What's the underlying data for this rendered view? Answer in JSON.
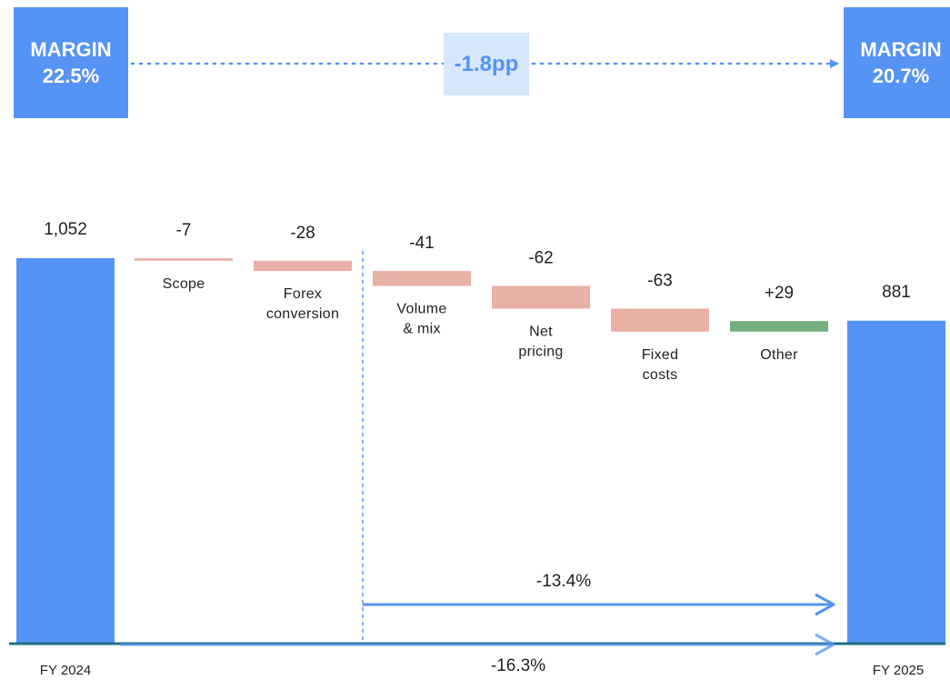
{
  "margin_left": {
    "label": "MARGIN",
    "value": "22.5%"
  },
  "margin_right": {
    "label": "MARGIN",
    "value": "20.7%"
  },
  "margin_change": "-1.8pp",
  "colors": {
    "total": "#5593f5",
    "negative": "#e8b1a6",
    "positive": "#74b07f",
    "axis": "#1f6e80",
    "arrow": "#5593f5",
    "badge_bg": "#d7e7fc"
  },
  "chart_data": {
    "type": "waterfall",
    "start": {
      "label": "FY 2024",
      "value": 1052,
      "value_label": "1,052"
    },
    "end": {
      "label": "FY 2025",
      "value": 881,
      "value_label": "881"
    },
    "steps": [
      {
        "label": [
          "Scope"
        ],
        "value": -7,
        "value_label": "-7"
      },
      {
        "label": [
          "Forex",
          "conversion"
        ],
        "value": -28,
        "value_label": "-28"
      },
      {
        "label": [
          "Volume",
          "& mix"
        ],
        "value": -41,
        "value_label": "-41"
      },
      {
        "label": [
          "Net",
          "pricing"
        ],
        "value": -62,
        "value_label": "-62"
      },
      {
        "label": [
          "Fixed",
          "costs"
        ],
        "value": -63,
        "value_label": "-63"
      },
      {
        "label": [
          "Other"
        ],
        "value": 29,
        "value_label": "+29"
      }
    ],
    "annotations": [
      {
        "text": "-13.4%",
        "from": "Volume & mix",
        "to": "FY 2025"
      },
      {
        "text": "-16.3%",
        "from": "FY 2024",
        "to": "FY 2025"
      }
    ]
  }
}
